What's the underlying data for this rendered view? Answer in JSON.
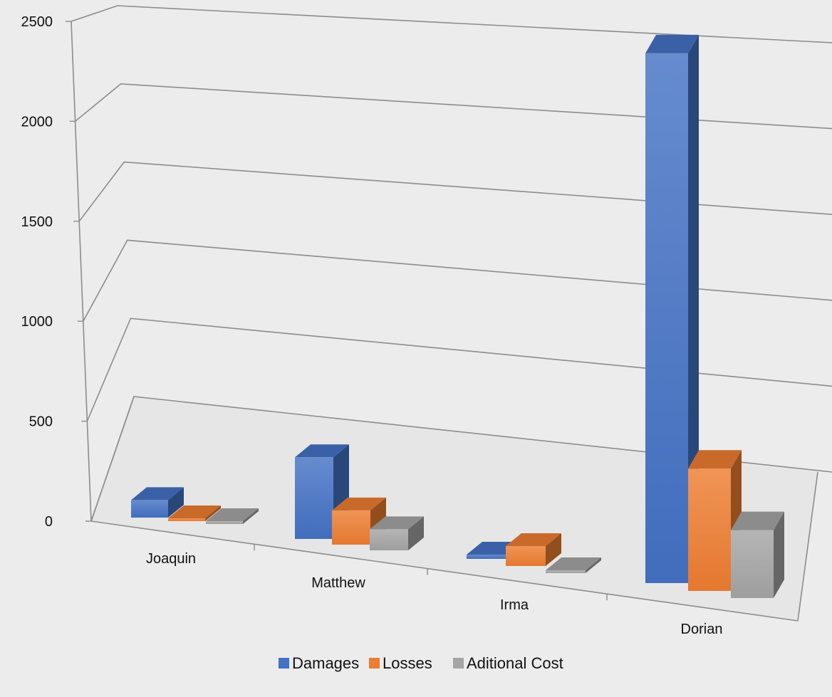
{
  "chart_data": {
    "type": "bar",
    "style": "3d-perspective",
    "categories": [
      "Joaquin",
      "Matthew",
      "Irma",
      "Dorian"
    ],
    "series": [
      {
        "name": "Damages",
        "values": [
          120,
          310,
          30,
          2340
        ],
        "color": "#4472c4"
      },
      {
        "name": "Losses",
        "values": [
          5,
          130,
          140,
          540
        ],
        "color": "#ed7d31"
      },
      {
        "name": "Aditional Cost",
        "values": [
          5,
          80,
          10,
          300
        ],
        "color": "#a5a5a5"
      }
    ],
    "y_ticks": [
      "0",
      "500",
      "1000",
      "1500",
      "2000",
      "2500"
    ],
    "ylim": [
      0,
      2500
    ],
    "grid": true,
    "legend_position": "bottom",
    "title": "",
    "xlabel": "",
    "ylabel": ""
  }
}
